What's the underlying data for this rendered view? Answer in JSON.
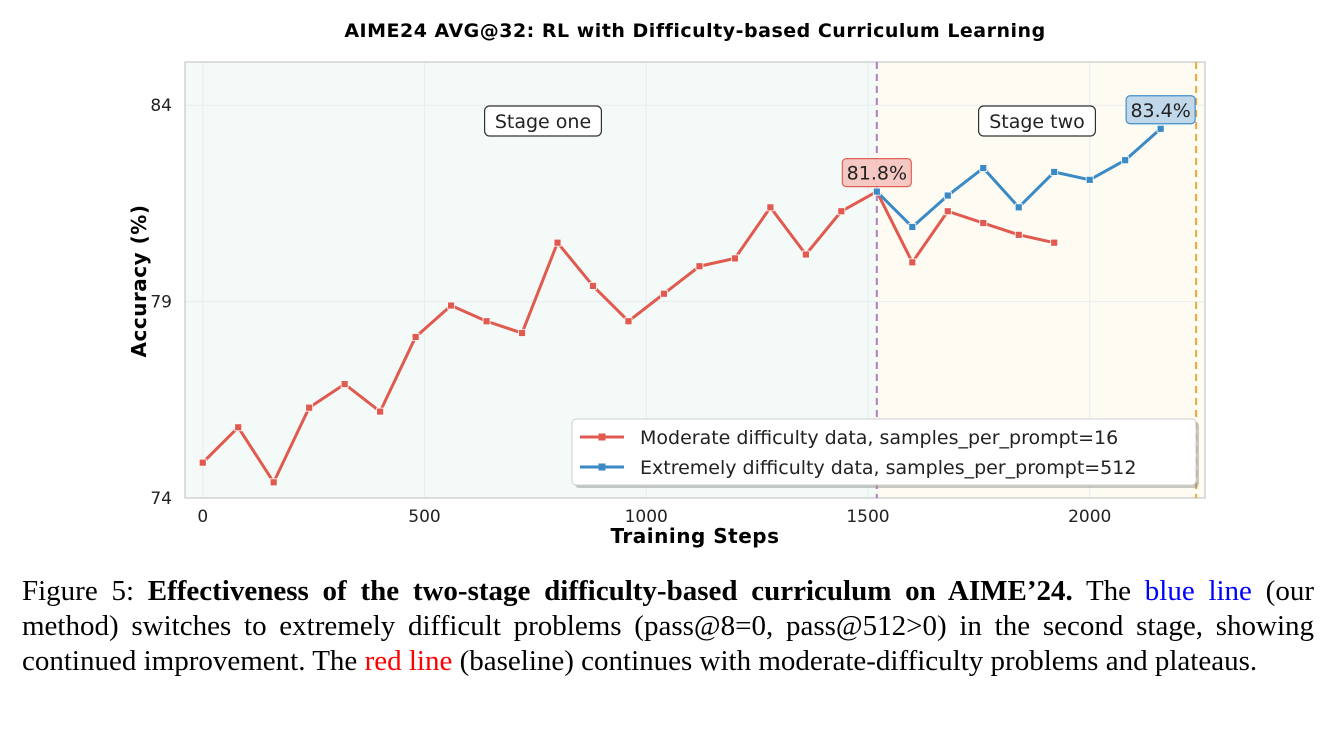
{
  "chart_data": {
    "type": "line",
    "title": "AIME24 AVG@32: RL with Difficulty-based Curriculum Learning",
    "xlabel": "Training Steps",
    "ylabel": "Accuracy (%)",
    "xlim": [
      -40,
      2260
    ],
    "ylim": [
      74,
      85.1
    ],
    "xticks": [
      0,
      500,
      1000,
      1500,
      2000
    ],
    "yticks": [
      74,
      79,
      84
    ],
    "grid": true,
    "legend_position": "lower-right",
    "series": [
      {
        "name": "Moderate difficulty data, samples_per_prompt=16",
        "color": "#e05a4f",
        "x": [
          0,
          80,
          160,
          240,
          320,
          400,
          480,
          560,
          640,
          720,
          800,
          880,
          960,
          1040,
          1120,
          1200,
          1280,
          1360,
          1440,
          1520,
          1600,
          1680,
          1760,
          1840,
          1920
        ],
        "y": [
          74.9,
          75.8,
          74.4,
          76.3,
          76.9,
          76.2,
          78.1,
          78.9,
          78.5,
          78.2,
          80.5,
          79.4,
          78.5,
          79.2,
          79.9,
          80.1,
          81.4,
          80.2,
          81.3,
          81.8,
          80.0,
          81.3,
          81.0,
          80.7,
          80.5
        ]
      },
      {
        "name": "Extremely difficulty data, samples_per_prompt=512",
        "color": "#3a8ac5",
        "x": [
          1520,
          1600,
          1680,
          1760,
          1840,
          1920,
          2000,
          2080,
          2160
        ],
        "y": [
          81.8,
          80.9,
          81.7,
          82.4,
          81.4,
          82.3,
          82.1,
          82.6,
          83.4
        ]
      }
    ],
    "annotations": [
      {
        "text": "81.8%",
        "x": 1520,
        "y": 81.8,
        "series": 0
      },
      {
        "text": "83.4%",
        "x": 2160,
        "y": 83.4,
        "series": 1
      }
    ],
    "stages": [
      {
        "label": "Stage one",
        "x_start": -40,
        "x_end": 1520,
        "fill": "#f3faf8"
      },
      {
        "label": "Stage two",
        "x_start": 1520,
        "x_end": 2260,
        "fill": "#fefbf3"
      }
    ],
    "vlines": [
      {
        "x": 1520,
        "color": "#b07cc6"
      },
      {
        "x": 2240,
        "color": "#e8a73a"
      }
    ]
  },
  "caption": {
    "prefix": "Figure 5: ",
    "bold": "Effectiveness of the two-stage difficulty-based curriculum on AIME’24.",
    "part1": " The ",
    "blue_ref": "blue line",
    "part2": " (our method) switches to extremely difficult problems (pass@8=0, pass@512>0) in the second stage, showing continued improvement. The ",
    "red_ref": "red line",
    "part3": " (baseline) continues with moderate-difficulty problems and plateaus."
  }
}
